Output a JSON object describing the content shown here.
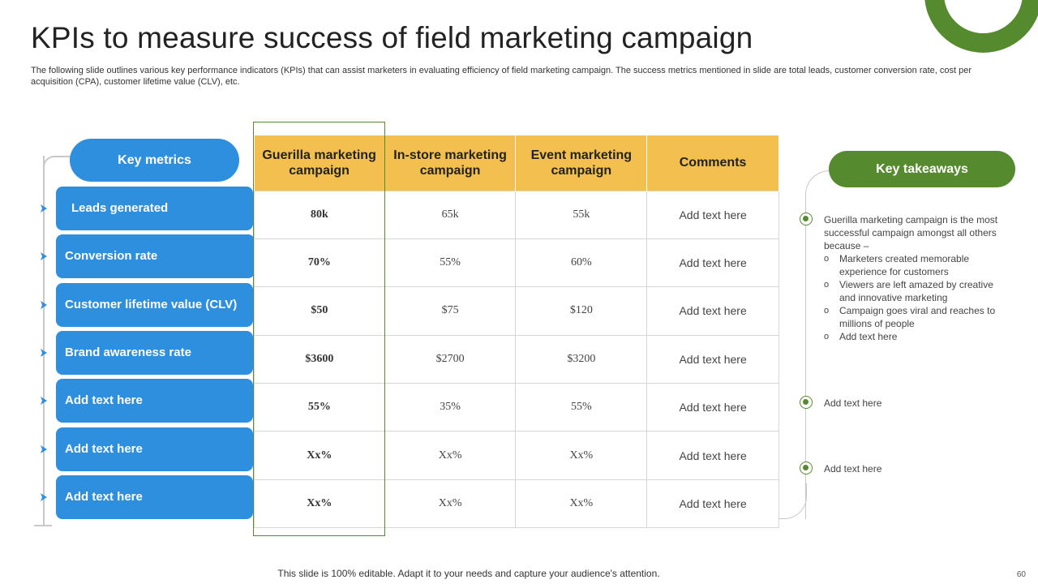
{
  "title": "KPIs to measure success of field marketing campaign",
  "subtitle": "The following slide outlines various key performance indicators (KPIs) that can assist marketers in evaluating efficiency of field marketing campaign. The success metrics mentioned in slide are total leads, customer conversion rate, cost per acquisition (CPA), customer lifetime value (CLV), etc.",
  "key_metrics_label": "Key metrics",
  "metrics": [
    "Leads generated",
    "Conversion rate",
    "Customer lifetime value (CLV)",
    "Brand awareness rate",
    "Add text here",
    "Add text here",
    "Add text here"
  ],
  "table": {
    "headers": [
      "Guerilla marketing campaign",
      "In-store marketing campaign",
      "Event marketing campaign",
      "Comments"
    ],
    "rows": [
      [
        "80k",
        "65k",
        "55k",
        "Add text here"
      ],
      [
        "70%",
        "55%",
        "60%",
        "Add text here"
      ],
      [
        "$50",
        "$75",
        "$120",
        "Add text here"
      ],
      [
        "$3600",
        "$2700",
        "$3200",
        "Add text here"
      ],
      [
        "55%",
        "35%",
        "55%",
        "Add text here"
      ],
      [
        "Xx%",
        "Xx%",
        "Xx%",
        "Add text here"
      ],
      [
        "Xx%",
        "Xx%",
        "Xx%",
        "Add text here"
      ]
    ]
  },
  "key_takeaways": {
    "label": "Key takeaways",
    "main": "Guerilla marketing campaign is the most successful campaign amongst all others because –",
    "bullets": [
      "Marketers created memorable experience for customers",
      "Viewers are left amazed by creative and innovative marketing",
      "Campaign goes viral and reaches to millions of people",
      "Add text here"
    ],
    "extra": [
      "Add text here",
      "Add text here"
    ]
  },
  "footer": "This slide is 100% editable. Adapt it to your needs and capture your audience's attention.",
  "page_number": "60",
  "colors": {
    "blue": "#2f8fdf",
    "green": "#568a2f",
    "yellow": "#f3c04f"
  }
}
